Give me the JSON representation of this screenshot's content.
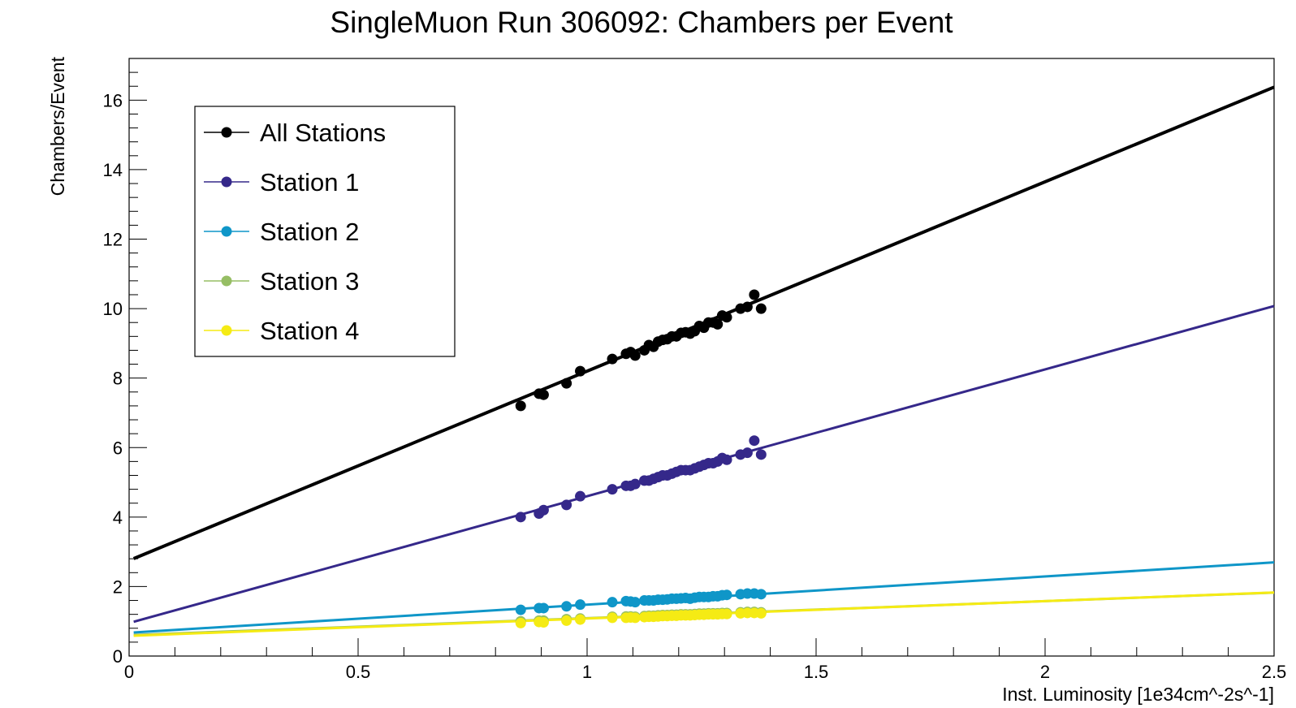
{
  "chart_data": {
    "type": "scatter",
    "title": "SingleMuon Run 306092: Chambers per Event",
    "xlabel": "Inst. Luminosity [1e34cm^-2s^-1]",
    "ylabel": "Chambers/Event",
    "xlim": [
      0,
      2.5
    ],
    "ylim": [
      0,
      17.2
    ],
    "x_ticks": [
      0,
      0.5,
      1,
      1.5,
      2,
      2.5
    ],
    "x_tick_labels": [
      "0",
      "0.5",
      "1",
      "1.5",
      "2",
      "2.5"
    ],
    "y_ticks": [
      0,
      2,
      4,
      6,
      8,
      10,
      12,
      14,
      16
    ],
    "y_tick_labels": [
      "0",
      "2",
      "4",
      "6",
      "8",
      "10",
      "12",
      "14",
      "16"
    ],
    "grid": false,
    "legend_position": "top-left",
    "x": [
      0.855,
      0.895,
      0.905,
      0.955,
      0.985,
      1.055,
      1.085,
      1.095,
      1.105,
      1.125,
      1.135,
      1.145,
      1.155,
      1.165,
      1.175,
      1.185,
      1.195,
      1.205,
      1.215,
      1.225,
      1.235,
      1.245,
      1.255,
      1.265,
      1.275,
      1.285,
      1.295,
      1.305,
      1.335,
      1.35,
      1.365,
      1.38
    ],
    "series": [
      {
        "name": "All Stations",
        "color": "#000000",
        "values": [
          7.2,
          7.55,
          7.52,
          7.85,
          8.2,
          8.55,
          8.7,
          8.75,
          8.65,
          8.8,
          8.95,
          8.9,
          9.05,
          9.1,
          9.12,
          9.2,
          9.2,
          9.3,
          9.32,
          9.28,
          9.35,
          9.5,
          9.45,
          9.6,
          9.6,
          9.55,
          9.8,
          9.75,
          10.0,
          10.05,
          10.4,
          10.0
        ],
        "fit": {
          "intercept": 2.75,
          "slope": 5.45
        }
      },
      {
        "name": "Station 1",
        "color": "#35288a",
        "values": [
          4.0,
          4.1,
          4.2,
          4.35,
          4.6,
          4.8,
          4.9,
          4.9,
          4.95,
          5.05,
          5.05,
          5.1,
          5.15,
          5.2,
          5.2,
          5.25,
          5.3,
          5.35,
          5.35,
          5.35,
          5.4,
          5.45,
          5.5,
          5.55,
          5.55,
          5.6,
          5.7,
          5.65,
          5.8,
          5.85,
          6.2,
          5.8
        ],
        "fit": {
          "intercept": 0.95,
          "slope": 3.65
        }
      },
      {
        "name": "Station 2",
        "color": "#0f96c8",
        "values": [
          1.33,
          1.38,
          1.38,
          1.43,
          1.48,
          1.55,
          1.58,
          1.57,
          1.55,
          1.6,
          1.6,
          1.6,
          1.62,
          1.62,
          1.63,
          1.65,
          1.65,
          1.66,
          1.67,
          1.65,
          1.68,
          1.7,
          1.7,
          1.7,
          1.72,
          1.72,
          1.75,
          1.76,
          1.78,
          1.8,
          1.8,
          1.78
        ],
        "fit": {
          "intercept": 0.67,
          "slope": 0.81
        }
      },
      {
        "name": "Station 3",
        "color": "#96be64",
        "values": [
          1.0,
          1.02,
          1.02,
          1.06,
          1.08,
          1.13,
          1.14,
          1.14,
          1.13,
          1.15,
          1.16,
          1.16,
          1.17,
          1.18,
          1.18,
          1.19,
          1.19,
          1.2,
          1.2,
          1.2,
          1.21,
          1.22,
          1.22,
          1.23,
          1.23,
          1.23,
          1.24,
          1.24,
          1.26,
          1.27,
          1.27,
          1.26
        ],
        "fit": {
          "intercept": 0.6,
          "slope": 0.49
        }
      },
      {
        "name": "Station 4",
        "color": "#f5eb14",
        "values": [
          0.95,
          0.98,
          0.97,
          1.02,
          1.05,
          1.1,
          1.1,
          1.11,
          1.1,
          1.12,
          1.13,
          1.13,
          1.14,
          1.15,
          1.15,
          1.16,
          1.16,
          1.17,
          1.17,
          1.17,
          1.18,
          1.19,
          1.19,
          1.2,
          1.2,
          1.2,
          1.21,
          1.21,
          1.23,
          1.24,
          1.24,
          1.23
        ],
        "fit": {
          "intercept": 0.58,
          "slope": 0.5
        }
      }
    ]
  }
}
